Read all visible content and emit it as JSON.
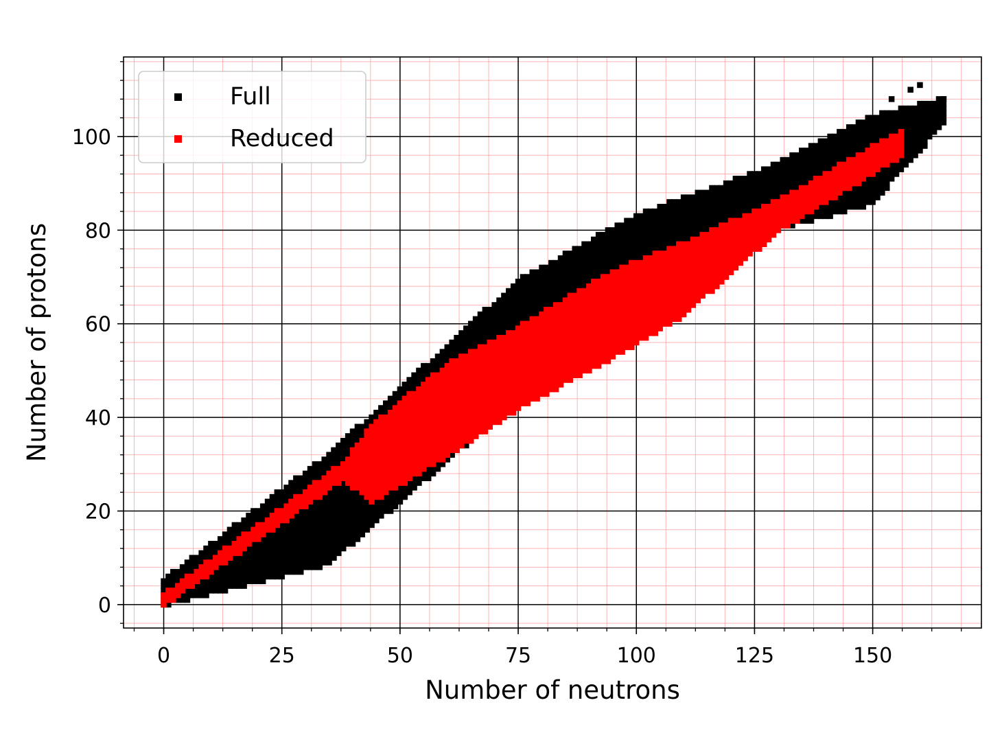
{
  "chart_data": {
    "type": "scatter",
    "title": "",
    "xlabel": "Number of neutrons",
    "ylabel": "Number of protons",
    "xlim": [
      -8.5,
      173
    ],
    "ylim": [
      -5,
      117
    ],
    "x_ticks": [
      0,
      25,
      50,
      75,
      100,
      125,
      150
    ],
    "y_ticks": [
      0,
      20,
      40,
      60,
      80,
      100
    ],
    "x_minor_step": 6.25,
    "y_minor_step": 4,
    "grid": {
      "major": true,
      "minor": true,
      "major_color": "#000000",
      "minor_color": "#ff9a9a"
    },
    "legend": {
      "placement": "top-left"
    },
    "marker": "square",
    "series": [
      {
        "name": "Full",
        "color": "#000000",
        "regions": [
          {
            "x_range": [
              0,
              35
            ],
            "y_low": [
              0,
              9
            ],
            "y_high": [
              5,
              32
            ]
          },
          {
            "x_range": [
              35,
              75
            ],
            "y_low": [
              9,
              44
            ],
            "y_high": [
              32,
              69
            ]
          },
          {
            "x_range": [
              75,
              100
            ],
            "y_low": [
              44,
              60
            ],
            "y_high": [
              69,
              83
            ]
          },
          {
            "x_range": [
              100,
              125
            ],
            "y_low": [
              60,
              79
            ],
            "y_high": [
              83,
              92
            ]
          },
          {
            "x_range": [
              125,
              150
            ],
            "y_low": [
              79,
              86
            ],
            "y_high": [
              92,
              104
            ]
          },
          {
            "x_range": [
              150,
              165
            ],
            "y_low": [
              86,
              103
            ],
            "y_high": [
              104,
              108
            ]
          }
        ],
        "points": [
          [
            160,
            111
          ],
          [
            163,
            107
          ],
          [
            165,
            108
          ],
          [
            154,
            108
          ],
          [
            158,
            110
          ]
        ]
      },
      {
        "name": "Reduced",
        "color": "#ff0000",
        "regions": [
          {
            "x_range": [
              0,
              38
            ],
            "y_low": [
              0,
              27
            ],
            "y_high": [
              2,
              30
            ]
          },
          {
            "x_range": [
              38,
              44
            ],
            "y_low": [
              27,
              22
            ],
            "y_high": [
              30,
              38
            ]
          },
          {
            "x_range": [
              44,
              60
            ],
            "y_low": [
              22,
              32
            ],
            "y_high": [
              38,
              51
            ]
          },
          {
            "x_range": [
              60,
              75
            ],
            "y_low": [
              32,
              42
            ],
            "y_high": [
              51,
              59
            ]
          },
          {
            "x_range": [
              75,
              95
            ],
            "y_low": [
              42,
              53
            ],
            "y_high": [
              59,
              71
            ]
          },
          {
            "x_range": [
              95,
              110
            ],
            "y_low": [
              53,
              62
            ],
            "y_high": [
              71,
              77
            ]
          },
          {
            "x_range": [
              110,
              130
            ],
            "y_low": [
              62,
              80
            ],
            "y_high": [
              77,
              86
            ]
          },
          {
            "x_range": [
              130,
              156
            ],
            "y_low": [
              80,
              96
            ],
            "y_high": [
              86,
              101
            ]
          }
        ]
      }
    ]
  }
}
